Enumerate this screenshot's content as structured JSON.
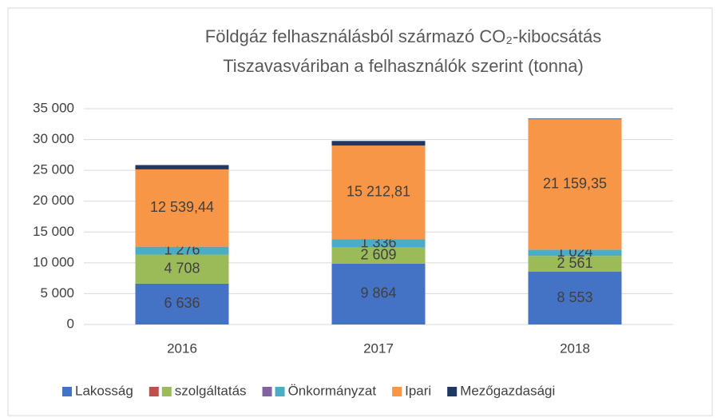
{
  "chart_data": {
    "type": "stacked_bar",
    "title": [
      "Földgáz felhasználásból származó  CO₂-kibocsátás",
      "Tiszavasváriban a felhasználók szerint (tonna)"
    ],
    "categories": [
      "2016",
      "2017",
      "2018"
    ],
    "series": [
      {
        "name": "Lakosság",
        "color": "#4472c4",
        "values": [
          6636,
          9864,
          8553
        ],
        "value_labels": [
          "6 636",
          "9 864",
          "8 553"
        ]
      },
      {
        "name": null,
        "color": "#c0504d",
        "values": [
          0,
          0,
          0
        ]
      },
      {
        "name": "szolgáltatás",
        "color": "#9bbb59",
        "values": [
          4708,
          2609,
          2561
        ],
        "value_labels": [
          "4 708",
          "2 609",
          "2 561"
        ]
      },
      {
        "name": null,
        "color": "#8064a2",
        "values": [
          0,
          0,
          0
        ]
      },
      {
        "name": "Önkormányzat",
        "color": "#4bacc6",
        "values": [
          1276,
          1336,
          1024
        ],
        "value_labels": [
          "1 276",
          "1 336",
          "1 024"
        ]
      },
      {
        "name": "Ipari",
        "color": "#f79646",
        "values": [
          12539.44,
          15212.81,
          21159.35
        ],
        "value_labels": [
          "12 539,44",
          "15 212,81",
          "21 159,35"
        ]
      },
      {
        "name": "Mezőgazdasági",
        "color": "#1f3864",
        "values": [
          700,
          750,
          100
        ]
      }
    ],
    "ylim": [
      0,
      35000
    ],
    "yticks": [
      0,
      {
        "value": 5000,
        "label": "5 000"
      },
      {
        "value": 10000,
        "label": "10 000"
      },
      {
        "value": 15000,
        "label": "15 000"
      },
      {
        "value": 20000,
        "label": "20 000"
      },
      {
        "value": 25000,
        "label": "25 000"
      },
      {
        "value": 30000,
        "label": "30 000"
      },
      {
        "value": 35000,
        "label": "35 000"
      }
    ],
    "grid": true,
    "legend": "bottom"
  }
}
